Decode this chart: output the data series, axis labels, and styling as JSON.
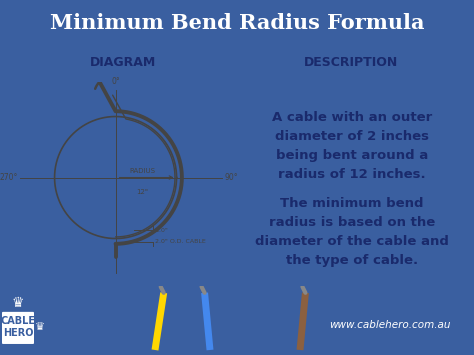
{
  "title": "Minimum Bend Radius Formula",
  "title_color": "#FFFFFF",
  "title_fontsize": 15,
  "bg_color": "#3a5fa0",
  "header_bg": "#b8c8e8",
  "header_text_color": "#1a2a6c",
  "header_left": "DIAGRAM",
  "header_right": "DESCRIPTION",
  "panel_bg": "#FFFFFF",
  "panel_border": "#4a6aaa",
  "desc_text1": "A cable with an outer\ndiameter of 2 inches\nbeing bent around a\nradius of 12 inches.",
  "desc_text2": "The minimum bend\nradius is based on the\ndiameter of the cable and\nthe type of cable.",
  "desc_color": "#1a2a6c",
  "desc_fontsize": 9.5,
  "footer_website": "www.cablehero.com.au",
  "diagram_labels": {
    "top": "0°",
    "right": "90°",
    "left": "270°",
    "radius_label": "RADIUS",
    "radius_val": "12\"",
    "od1": "2.0\"",
    "od2": "2.0\" O.D. CABLE"
  },
  "wire_colors": [
    "#FFD700",
    "#4488EE",
    "#8B4513"
  ],
  "line_color": "#444444"
}
